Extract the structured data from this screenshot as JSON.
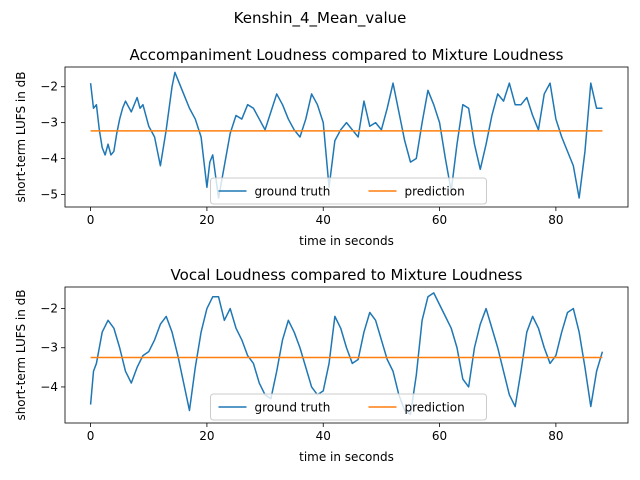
{
  "figure": {
    "suptitle": "Kenshin_4_Mean_value"
  },
  "colors": {
    "ground_truth": "#1f77b4",
    "prediction": "#ff7f0e"
  },
  "chart_data": [
    {
      "type": "line",
      "title": "Accompaniment Loudness compared to Mixture Loudness",
      "xlabel": "time in seconds",
      "ylabel": "short-term LUFS in dB",
      "xlim": [
        -4.4,
        92.4
      ],
      "ylim": [
        -5.35,
        -1.45
      ],
      "xticks": [
        0,
        20,
        40,
        60,
        80
      ],
      "yticks": [
        -5,
        -4,
        -3,
        -2
      ],
      "legend": {
        "position": "lower center",
        "entries": [
          "ground truth",
          "prediction"
        ]
      },
      "series": [
        {
          "name": "ground truth",
          "x": [
            0.0,
            0.5,
            1.0,
            1.5,
            2.0,
            2.5,
            3.0,
            3.5,
            4.0,
            4.5,
            5.0,
            5.5,
            6.0,
            7.0,
            8.0,
            8.5,
            9.0,
            10.0,
            11.0,
            12.0,
            13.0,
            14.0,
            14.5,
            15.0,
            16.0,
            17.0,
            18.0,
            19.0,
            20.0,
            20.5,
            21.0,
            22.0,
            23.0,
            24.0,
            25.0,
            26.0,
            27.0,
            28.0,
            29.0,
            30.0,
            31.0,
            32.0,
            33.0,
            34.0,
            35.0,
            36.0,
            37.0,
            38.0,
            39.0,
            40.0,
            41.0,
            42.0,
            43.0,
            44.0,
            45.0,
            46.0,
            47.0,
            48.0,
            49.0,
            50.0,
            51.0,
            52.0,
            53.0,
            54.0,
            55.0,
            56.0,
            57.0,
            58.0,
            59.0,
            60.0,
            61.0,
            62.0,
            63.0,
            64.0,
            65.0,
            66.0,
            67.0,
            68.0,
            69.0,
            70.0,
            71.0,
            72.0,
            73.0,
            74.0,
            75.0,
            76.0,
            77.0,
            78.0,
            79.0,
            80.0,
            81.0,
            82.0,
            83.0,
            84.0,
            85.0,
            86.0,
            87.0,
            88.0
          ],
          "y": [
            -1.9,
            -2.6,
            -2.5,
            -3.2,
            -3.7,
            -3.9,
            -3.6,
            -3.9,
            -3.8,
            -3.3,
            -2.9,
            -2.6,
            -2.4,
            -2.7,
            -2.3,
            -2.6,
            -2.5,
            -3.1,
            -3.4,
            -4.2,
            -3.2,
            -2.0,
            -1.6,
            -1.8,
            -2.2,
            -2.6,
            -2.9,
            -3.4,
            -4.8,
            -4.1,
            -3.9,
            -5.1,
            -4.2,
            -3.3,
            -2.8,
            -2.9,
            -2.5,
            -2.6,
            -2.9,
            -3.2,
            -2.7,
            -2.2,
            -2.5,
            -2.9,
            -3.2,
            -3.4,
            -2.9,
            -2.2,
            -2.5,
            -3.0,
            -4.8,
            -3.5,
            -3.2,
            -3.0,
            -3.2,
            -3.4,
            -2.4,
            -3.1,
            -3.0,
            -3.2,
            -2.6,
            -1.9,
            -2.7,
            -3.5,
            -4.1,
            -4.0,
            -3.0,
            -2.1,
            -2.5,
            -3.0,
            -4.0,
            -4.9,
            -3.6,
            -2.5,
            -2.6,
            -3.6,
            -4.3,
            -3.6,
            -2.8,
            -2.2,
            -2.4,
            -1.9,
            -2.5,
            -2.5,
            -2.3,
            -2.8,
            -3.2,
            -2.2,
            -1.9,
            -2.9,
            -3.4,
            -3.8,
            -4.2,
            -5.1,
            -3.8,
            -1.9,
            -2.6,
            -2.6
          ]
        },
        {
          "name": "prediction",
          "x": [
            0,
            88
          ],
          "y": [
            -3.23,
            -3.23
          ]
        }
      ]
    },
    {
      "type": "line",
      "title": "Vocal Loudness compared to Mixture Loudness",
      "xlabel": "time in seconds",
      "ylabel": "short-term LUFS in dB",
      "xlim": [
        -4.4,
        92.4
      ],
      "ylim": [
        -4.92,
        -1.45
      ],
      "xticks": [
        0,
        20,
        40,
        60,
        80
      ],
      "yticks": [
        -4,
        -3,
        -2
      ],
      "legend": {
        "position": "lower center",
        "entries": [
          "ground truth",
          "prediction"
        ]
      },
      "series": [
        {
          "name": "ground truth",
          "x": [
            0.0,
            0.5,
            1.0,
            1.5,
            2.0,
            3.0,
            4.0,
            5.0,
            6.0,
            7.0,
            8.0,
            9.0,
            10.0,
            11.0,
            12.0,
            13.0,
            14.0,
            15.0,
            16.0,
            17.0,
            18.0,
            19.0,
            20.0,
            21.0,
            22.0,
            23.0,
            24.0,
            25.0,
            26.0,
            27.0,
            28.0,
            29.0,
            30.0,
            31.0,
            32.0,
            33.0,
            34.0,
            35.0,
            36.0,
            37.0,
            38.0,
            39.0,
            40.0,
            41.0,
            42.0,
            43.0,
            44.0,
            45.0,
            46.0,
            47.0,
            48.0,
            49.0,
            50.0,
            51.0,
            52.0,
            53.0,
            54.0,
            55.0,
            56.0,
            57.0,
            58.0,
            59.0,
            60.0,
            61.0,
            62.0,
            63.0,
            64.0,
            65.0,
            66.0,
            67.0,
            68.0,
            69.0,
            70.0,
            71.0,
            72.0,
            73.0,
            74.0,
            75.0,
            76.0,
            77.0,
            78.0,
            79.0,
            80.0,
            81.0,
            82.0,
            83.0,
            84.0,
            85.0,
            86.0,
            87.0,
            88.0
          ],
          "y": [
            -4.45,
            -3.6,
            -3.4,
            -3.0,
            -2.6,
            -2.3,
            -2.5,
            -3.0,
            -3.6,
            -3.9,
            -3.5,
            -3.2,
            -3.1,
            -2.8,
            -2.4,
            -2.2,
            -2.6,
            -3.2,
            -3.9,
            -4.6,
            -3.5,
            -2.6,
            -2.0,
            -1.7,
            -1.7,
            -2.3,
            -2.0,
            -2.5,
            -2.8,
            -3.2,
            -3.4,
            -3.9,
            -4.2,
            -4.3,
            -3.6,
            -2.8,
            -2.3,
            -2.6,
            -3.0,
            -3.5,
            -4.0,
            -4.2,
            -4.1,
            -3.4,
            -2.2,
            -2.5,
            -3.0,
            -3.4,
            -3.3,
            -2.6,
            -2.1,
            -2.3,
            -2.8,
            -3.3,
            -3.6,
            -4.2,
            -4.6,
            -4.7,
            -3.7,
            -2.3,
            -1.7,
            -1.6,
            -1.9,
            -2.2,
            -2.5,
            -3.0,
            -3.8,
            -4.0,
            -3.0,
            -2.4,
            -2.0,
            -2.5,
            -3.0,
            -3.6,
            -4.2,
            -4.5,
            -3.6,
            -2.6,
            -2.2,
            -2.5,
            -3.0,
            -3.4,
            -3.2,
            -2.6,
            -2.1,
            -2.0,
            -2.6,
            -3.5,
            -4.5,
            -3.6,
            -3.1
          ]
        },
        {
          "name": "prediction",
          "x": [
            0,
            88
          ],
          "y": [
            -3.25,
            -3.25
          ]
        }
      ]
    }
  ]
}
